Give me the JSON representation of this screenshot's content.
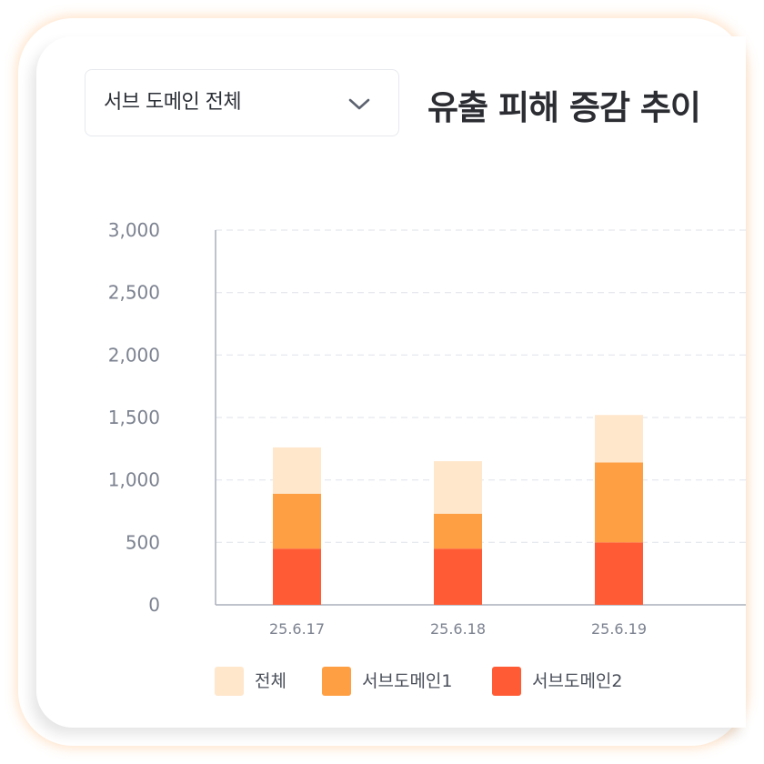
{
  "filter": {
    "selected_label": "서브 도메인 전체",
    "chevron_icon": "chevron-down-icon"
  },
  "title": "유출 피해 증감 추이",
  "chart_data": {
    "type": "bar",
    "stacked": true,
    "categories": [
      "25.6.17",
      "25.6.18",
      "25.6.19"
    ],
    "series": [
      {
        "name": "서브도메인2",
        "color": "#ff5c35",
        "values": [
          450,
          450,
          500
        ]
      },
      {
        "name": "서브도메인1",
        "color": "#ff9f43",
        "values": [
          440,
          280,
          640
        ]
      },
      {
        "name": "전체",
        "color": "#ffe7cc",
        "values": [
          370,
          420,
          380
        ]
      }
    ],
    "legend_order": [
      "전체",
      "서브도메인1",
      "서브도메인2"
    ],
    "yticks": [
      0,
      500,
      1000,
      1500,
      2000,
      2500,
      3000
    ],
    "ytick_labels": [
      "0",
      "500",
      "1,000",
      "1,500",
      "2,000",
      "2,500",
      "3,000"
    ],
    "ylim": [
      0,
      3000
    ],
    "grid": true,
    "legend_position": "bottom"
  }
}
